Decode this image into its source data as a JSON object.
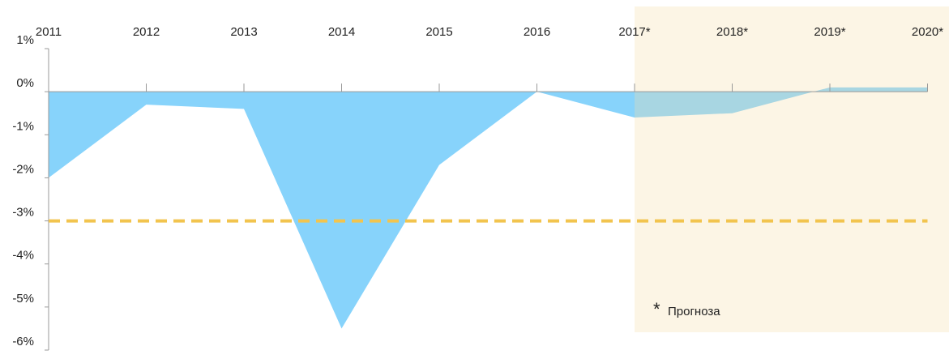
{
  "chart_data": {
    "type": "area",
    "categories": [
      "2011",
      "2012",
      "2013",
      "2014",
      "2015",
      "2016",
      "2017*",
      "2018*",
      "2019*",
      "2020*"
    ],
    "values": [
      -2.0,
      -0.3,
      -0.4,
      -5.5,
      -1.7,
      0.0,
      -0.6,
      -0.5,
      0.1,
      0.1
    ],
    "color": "#87d3fb",
    "ylim": [
      -6,
      1
    ],
    "yticks": [
      {
        "value": 1,
        "label": "1%"
      },
      {
        "value": 0,
        "label": "0%"
      },
      {
        "value": -1,
        "label": "-1%"
      },
      {
        "value": -2,
        "label": "-2%"
      },
      {
        "value": -3,
        "label": "-3%"
      },
      {
        "value": -4,
        "label": "-4%"
      },
      {
        "value": -5,
        "label": "-5%"
      },
      {
        "value": -6,
        "label": "-6%"
      }
    ],
    "reference_line": {
      "value": -3,
      "color": "#f2c44e"
    },
    "forecast_from": "2017*",
    "forecast_color": "#f5dfa8",
    "annotation_marker": "*",
    "annotation": "Прогноза"
  }
}
